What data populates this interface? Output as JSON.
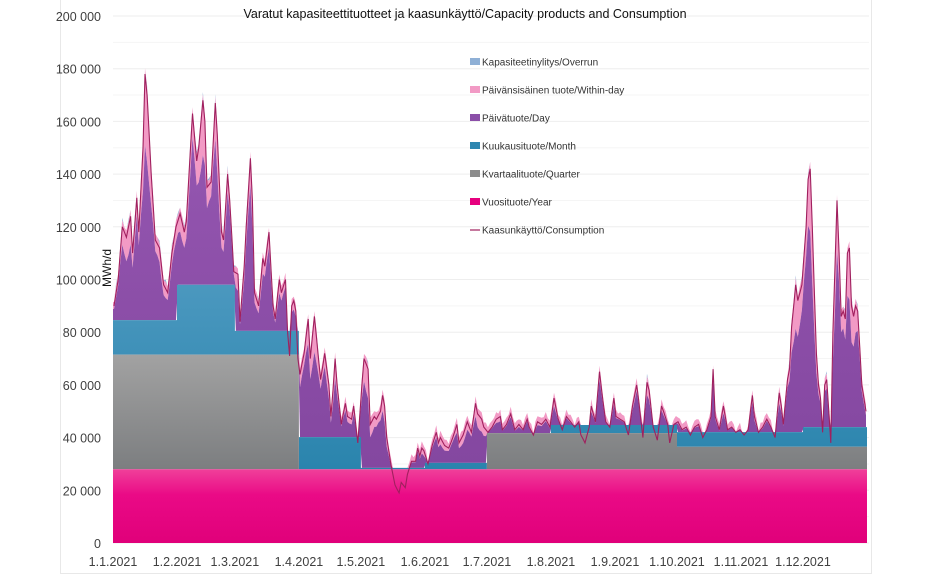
{
  "chart_data": {
    "type": "area",
    "stacked": true,
    "title": "Varatut kapasiteettituotteet ja kaasunkäyttö/Capacity products and Consumption",
    "xlabel": "",
    "ylabel": "MWh/d",
    "ylim": [
      0,
      200000
    ],
    "yticks": [
      0,
      20000,
      40000,
      60000,
      80000,
      100000,
      120000,
      140000,
      160000,
      180000,
      200000
    ],
    "ytick_labels": [
      "0",
      "20 000",
      "40 000",
      "60 000",
      "80 000",
      "100 000",
      "120 000",
      "140 000",
      "160 000",
      "180 000",
      "200 000"
    ],
    "xtick_labels": [
      "1.1.2021",
      "1.2.2021",
      "1.3.2021",
      "1.4.2021",
      "1.5.2021",
      "1.6.2021",
      "1.7.2021",
      "1.8.2021",
      "1.9.2021",
      "1.10.2021",
      "1.11.2021",
      "1.12.2021"
    ],
    "xtick_days": [
      0,
      31,
      59,
      90,
      120,
      151,
      181,
      212,
      243,
      273,
      304,
      334
    ],
    "days_in_year": 365,
    "grid": true,
    "legend_position": "top-right-inside",
    "legend": [
      {
        "name": "Kapasiteetinylitys/Overrun",
        "color": "#8fb0d6",
        "kind": "area"
      },
      {
        "name": "Päivänsisäinen tuote/Within-day",
        "color": "#f29ac5",
        "kind": "area"
      },
      {
        "name": "Päivätuote/Day",
        "color": "#8b4fa8",
        "kind": "area"
      },
      {
        "name": "Kuukausituote/Month",
        "color": "#2e86b0",
        "kind": "area"
      },
      {
        "name": "Kvartaalituote/Quarter",
        "color": "#8c8c8c",
        "kind": "area"
      },
      {
        "name": "Vuosituote/Year",
        "color": "#e6007e",
        "kind": "area"
      },
      {
        "name": "Kaasunkäyttö/Consumption",
        "color": "#a0205e",
        "kind": "line"
      }
    ],
    "series": {
      "year_level": 28000,
      "quarter_cumulative_top": [
        {
          "from_day": 0,
          "to_day": 90,
          "value": 71500
        },
        {
          "from_day": 90,
          "to_day": 181,
          "value": 28000
        },
        {
          "from_day": 181,
          "to_day": 273,
          "value": 41700
        },
        {
          "from_day": 273,
          "to_day": 365,
          "value": 36500
        }
      ],
      "month_cumulative_top": [
        {
          "from_day": 0,
          "to_day": 31,
          "value": 84600
        },
        {
          "from_day": 31,
          "to_day": 59,
          "value": 98000
        },
        {
          "from_day": 59,
          "to_day": 90,
          "value": 80500
        },
        {
          "from_day": 90,
          "to_day": 120,
          "value": 40200
        },
        {
          "from_day": 120,
          "to_day": 151,
          "value": 28500
        },
        {
          "from_day": 151,
          "to_day": 181,
          "value": 30400
        },
        {
          "from_day": 181,
          "to_day": 212,
          "value": 41700
        },
        {
          "from_day": 212,
          "to_day": 243,
          "value": 44800
        },
        {
          "from_day": 243,
          "to_day": 273,
          "value": 44800
        },
        {
          "from_day": 273,
          "to_day": 304,
          "value": 42100
        },
        {
          "from_day": 304,
          "to_day": 334,
          "value": 42100
        },
        {
          "from_day": 334,
          "to_day": 365,
          "value": 44000
        }
      ],
      "consumption_points": [
        [
          0,
          90000
        ],
        [
          2,
          100000
        ],
        [
          4,
          120000
        ],
        [
          6,
          116000
        ],
        [
          8,
          124000
        ],
        [
          9,
          110000
        ],
        [
          11,
          131000
        ],
        [
          12,
          118000
        ],
        [
          14,
          150000
        ],
        [
          15,
          178000
        ],
        [
          16,
          170000
        ],
        [
          18,
          140000
        ],
        [
          20,
          115000
        ],
        [
          22,
          112000
        ],
        [
          24,
          98000
        ],
        [
          26,
          95000
        ],
        [
          28,
          110000
        ],
        [
          30,
          120000
        ],
        [
          32,
          125000
        ],
        [
          34,
          118000
        ],
        [
          35,
          122000
        ],
        [
          37,
          150000
        ],
        [
          38,
          163000
        ],
        [
          40,
          145000
        ],
        [
          41,
          150000
        ],
        [
          43,
          168000
        ],
        [
          44,
          160000
        ],
        [
          45,
          135000
        ],
        [
          47,
          137000
        ],
        [
          49,
          167000
        ],
        [
          50,
          155000
        ],
        [
          52,
          118000
        ],
        [
          53,
          115000
        ],
        [
          55,
          140000
        ],
        [
          56,
          130000
        ],
        [
          58,
          103000
        ],
        [
          60,
          102000
        ],
        [
          61,
          84000
        ],
        [
          63,
          105000
        ],
        [
          64,
          120000
        ],
        [
          66,
          146000
        ],
        [
          67,
          130000
        ],
        [
          68,
          95000
        ],
        [
          70,
          90000
        ],
        [
          72,
          108000
        ],
        [
          73,
          105000
        ],
        [
          75,
          118000
        ],
        [
          77,
          90000
        ],
        [
          78,
          85000
        ],
        [
          80,
          100000
        ],
        [
          81,
          95000
        ],
        [
          83,
          100000
        ],
        [
          84,
          80000
        ],
        [
          85,
          71000
        ],
        [
          86,
          90000
        ],
        [
          87,
          92000
        ],
        [
          88,
          88000
        ],
        [
          89,
          70000
        ],
        [
          90,
          64000
        ],
        [
          92,
          72000
        ],
        [
          94,
          85000
        ],
        [
          95,
          70000
        ],
        [
          96,
          78000
        ],
        [
          97,
          86000
        ],
        [
          99,
          70000
        ],
        [
          100,
          62000
        ],
        [
          102,
          72000
        ],
        [
          104,
          60000
        ],
        [
          105,
          48000
        ],
        [
          106,
          58000
        ],
        [
          107,
          70000
        ],
        [
          108,
          60000
        ],
        [
          110,
          45000
        ],
        [
          112,
          53000
        ],
        [
          113,
          48000
        ],
        [
          115,
          47000
        ],
        [
          116,
          52000
        ],
        [
          118,
          38000
        ],
        [
          120,
          60000
        ],
        [
          121,
          70000
        ],
        [
          123,
          66000
        ],
        [
          124,
          45000
        ],
        [
          126,
          48000
        ],
        [
          127,
          47000
        ],
        [
          129,
          50000
        ],
        [
          130,
          56000
        ],
        [
          131,
          52000
        ],
        [
          132,
          40000
        ],
        [
          134,
          30000
        ],
        [
          136,
          22000
        ],
        [
          138,
          19000
        ],
        [
          139,
          23000
        ],
        [
          141,
          21000
        ],
        [
          142,
          26000
        ],
        [
          144,
          31000
        ],
        [
          146,
          31000
        ],
        [
          147,
          36000
        ],
        [
          148,
          33000
        ],
        [
          149,
          36000
        ],
        [
          150,
          35000
        ],
        [
          152,
          30000
        ],
        [
          154,
          37000
        ],
        [
          156,
          42000
        ],
        [
          157,
          38000
        ],
        [
          158,
          40000
        ],
        [
          160,
          37000
        ],
        [
          162,
          36000
        ],
        [
          164,
          40000
        ],
        [
          166,
          45000
        ],
        [
          167,
          38000
        ],
        [
          169,
          41000
        ],
        [
          171,
          46000
        ],
        [
          173,
          42000
        ],
        [
          175,
          53000
        ],
        [
          176,
          49000
        ],
        [
          178,
          47000
        ],
        [
          179,
          44000
        ],
        [
          181,
          42000
        ],
        [
          183,
          44000
        ],
        [
          185,
          47000
        ],
        [
          187,
          48000
        ],
        [
          188,
          43000
        ],
        [
          190,
          45000
        ],
        [
          192,
          49000
        ],
        [
          194,
          43000
        ],
        [
          196,
          45000
        ],
        [
          198,
          43000
        ],
        [
          200,
          47000
        ],
        [
          201,
          44000
        ],
        [
          203,
          41000
        ],
        [
          205,
          46000
        ],
        [
          207,
          45000
        ],
        [
          209,
          47000
        ],
        [
          211,
          44000
        ],
        [
          213,
          55000
        ],
        [
          215,
          47000
        ],
        [
          217,
          43000
        ],
        [
          219,
          48000
        ],
        [
          221,
          46000
        ],
        [
          223,
          44000
        ],
        [
          225,
          46000
        ],
        [
          226,
          41000
        ],
        [
          228,
          38000
        ],
        [
          230,
          44000
        ],
        [
          231,
          52000
        ],
        [
          233,
          46000
        ],
        [
          235,
          65000
        ],
        [
          236,
          58000
        ],
        [
          238,
          46000
        ],
        [
          240,
          44000
        ],
        [
          242,
          55000
        ],
        [
          243,
          48000
        ],
        [
          245,
          47000
        ],
        [
          247,
          46000
        ],
        [
          249,
          41000
        ],
        [
          251,
          52000
        ],
        [
          253,
          60000
        ],
        [
          254,
          54000
        ],
        [
          256,
          40000
        ],
        [
          258,
          61000
        ],
        [
          259,
          58000
        ],
        [
          261,
          44000
        ],
        [
          263,
          39000
        ],
        [
          265,
          52000
        ],
        [
          266,
          50000
        ],
        [
          268,
          45000
        ],
        [
          269,
          38000
        ],
        [
          271,
          45000
        ],
        [
          273,
          46000
        ],
        [
          275,
          43000
        ],
        [
          277,
          44000
        ],
        [
          279,
          41000
        ],
        [
          281,
          44000
        ],
        [
          283,
          45000
        ],
        [
          285,
          40000
        ],
        [
          287,
          43000
        ],
        [
          289,
          48000
        ],
        [
          290,
          66000
        ],
        [
          291,
          48000
        ],
        [
          293,
          43000
        ],
        [
          295,
          52000
        ],
        [
          297,
          43000
        ],
        [
          299,
          44000
        ],
        [
          301,
          42000
        ],
        [
          303,
          43000
        ],
        [
          305,
          41000
        ],
        [
          307,
          43000
        ],
        [
          309,
          56000
        ],
        [
          310,
          48000
        ],
        [
          312,
          42000
        ],
        [
          314,
          44000
        ],
        [
          316,
          47000
        ],
        [
          318,
          44000
        ],
        [
          320,
          40000
        ],
        [
          322,
          57000
        ],
        [
          323,
          52000
        ],
        [
          324,
          45000
        ],
        [
          326,
          62000
        ],
        [
          327,
          66000
        ],
        [
          328,
          82000
        ],
        [
          330,
          98000
        ],
        [
          331,
          92000
        ],
        [
          333,
          98000
        ],
        [
          335,
          120000
        ],
        [
          336,
          138000
        ],
        [
          337,
          142000
        ],
        [
          338,
          120000
        ],
        [
          340,
          72000
        ],
        [
          341,
          60000
        ],
        [
          342,
          55000
        ],
        [
          343,
          42000
        ],
        [
          344,
          60000
        ],
        [
          345,
          62000
        ],
        [
          346,
          50000
        ],
        [
          347,
          38000
        ],
        [
          348,
          80000
        ],
        [
          350,
          130000
        ],
        [
          351,
          110000
        ],
        [
          352,
          86000
        ],
        [
          353,
          88000
        ],
        [
          354,
          85000
        ],
        [
          355,
          110000
        ],
        [
          356,
          112000
        ],
        [
          357,
          90000
        ],
        [
          358,
          86000
        ],
        [
          359,
          90000
        ],
        [
          360,
          88000
        ],
        [
          362,
          60000
        ],
        [
          364,
          50000
        ]
      ],
      "day_product_share_of_excess": 0.78,
      "overrun_note": "small thin band visible only at select peaks"
    }
  }
}
